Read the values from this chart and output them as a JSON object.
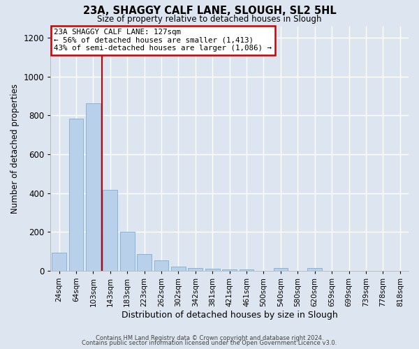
{
  "title": "23A, SHAGGY CALF LANE, SLOUGH, SL2 5HL",
  "subtitle": "Size of property relative to detached houses in Slough",
  "xlabel": "Distribution of detached houses by size in Slough",
  "ylabel": "Number of detached properties",
  "bar_color": "#b8d0ea",
  "bar_edge_color": "#7aadd4",
  "background_color": "#dde6f0",
  "grid_color": "#ffffff",
  "vline_color": "#cc0000",
  "categories": [
    "24sqm",
    "64sqm",
    "103sqm",
    "143sqm",
    "183sqm",
    "223sqm",
    "262sqm",
    "302sqm",
    "342sqm",
    "381sqm",
    "421sqm",
    "461sqm",
    "500sqm",
    "540sqm",
    "580sqm",
    "620sqm",
    "659sqm",
    "699sqm",
    "739sqm",
    "778sqm",
    "818sqm"
  ],
  "values": [
    93,
    783,
    863,
    415,
    202,
    85,
    52,
    22,
    13,
    10,
    5,
    8,
    0,
    15,
    0,
    13,
    0,
    0,
    0,
    0,
    0
  ],
  "vline_idx": 2.5,
  "ylim": [
    0,
    1260
  ],
  "yticks": [
    0,
    200,
    400,
    600,
    800,
    1000,
    1200
  ],
  "annotation_title": "23A SHAGGY CALF LANE: 127sqm",
  "annotation_line1": "← 56% of detached houses are smaller (1,413)",
  "annotation_line2": "43% of semi-detached houses are larger (1,086) →",
  "annotation_box_color": "#ffffff",
  "annotation_edge_color": "#cc0000",
  "footer_line1": "Contains HM Land Registry data © Crown copyright and database right 2024.",
  "footer_line2": "Contains public sector information licensed under the Open Government Licence v3.0."
}
